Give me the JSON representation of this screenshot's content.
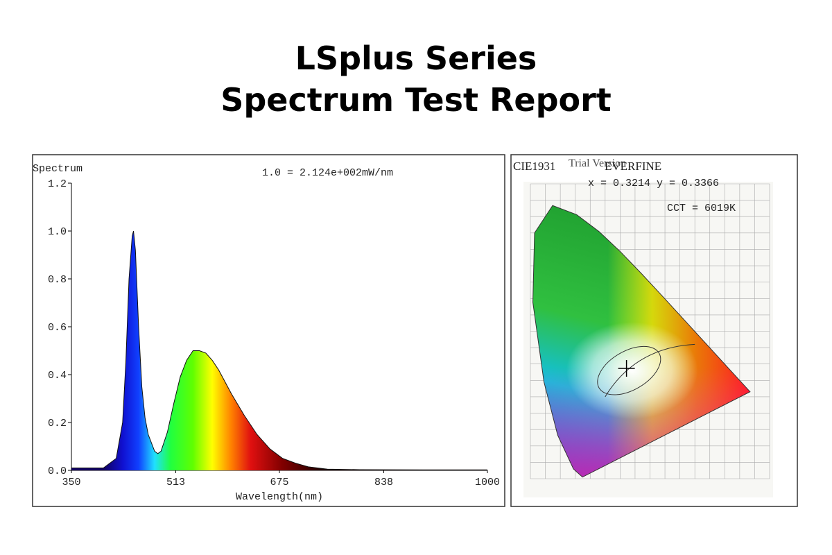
{
  "header": {
    "title_line1": "LSplus Series",
    "title_line2": "Spectrum Test Report"
  },
  "chart_data": [
    {
      "type": "area",
      "title": "Spectrum",
      "annotation": "1.0 = 2.124e+002mW/nm",
      "x_label": "Wavelength(nm)",
      "x": [
        350,
        380,
        400,
        420,
        430,
        435,
        440,
        445,
        447,
        450,
        455,
        460,
        465,
        470,
        480,
        485,
        490,
        500,
        510,
        520,
        530,
        540,
        550,
        560,
        570,
        580,
        590,
        600,
        620,
        640,
        660,
        680,
        700,
        720,
        750,
        800,
        900,
        1000
      ],
      "values": [
        0.01,
        0.01,
        0.01,
        0.05,
        0.2,
        0.45,
        0.8,
        0.98,
        1.0,
        0.92,
        0.6,
        0.35,
        0.22,
        0.15,
        0.08,
        0.07,
        0.08,
        0.16,
        0.28,
        0.39,
        0.46,
        0.5,
        0.5,
        0.49,
        0.46,
        0.42,
        0.37,
        0.32,
        0.23,
        0.15,
        0.09,
        0.05,
        0.03,
        0.015,
        0.005,
        0.003,
        0.002,
        0.002
      ],
      "xlim": [
        350,
        1000
      ],
      "xticks": [
        350,
        513,
        675,
        838,
        1000
      ],
      "ylim": [
        0,
        1.2
      ],
      "yticks": [
        {
          "value": 0,
          "label": "0.0"
        },
        {
          "value": 0.2,
          "label": "0.2"
        },
        {
          "value": 0.4,
          "label": "0.4"
        },
        {
          "value": 0.6,
          "label": "0.6"
        },
        {
          "value": 0.8,
          "label": "0.8"
        },
        {
          "value": 1,
          "label": "1.0"
        },
        {
          "value": 1.2,
          "label": "1.2"
        }
      ]
    },
    {
      "type": "cie",
      "title": "CIE1931",
      "brand": "EVERFINE",
      "watermark": "Trial Version",
      "coordinates": "x = 0.3214 y = 0.3366",
      "cct": "CCT = 6019K"
    }
  ]
}
